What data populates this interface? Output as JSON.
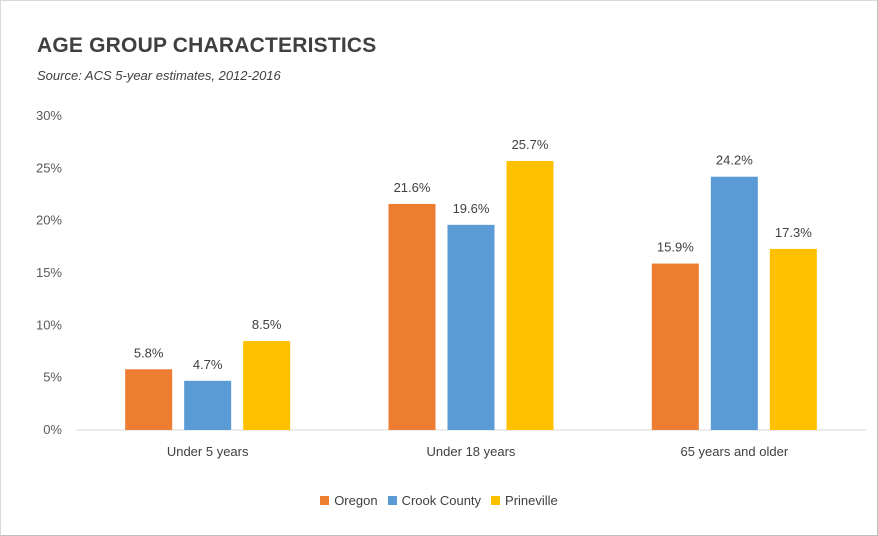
{
  "chart_data": {
    "type": "bar",
    "title": "AGE GROUP CHARACTERISTICS",
    "subtitle": "Source: ACS 5-year estimates, 2012-2016",
    "xlabel": "",
    "ylabel": "",
    "categories": [
      "Under 5 years",
      "Under 18 years",
      "65 years and older"
    ],
    "series": [
      {
        "name": "Oregon",
        "color": "#ED7D31",
        "values": [
          5.8,
          21.6,
          15.9
        ],
        "labels": [
          "5.8%",
          "21.6%",
          "15.9%"
        ]
      },
      {
        "name": "Crook County",
        "color": "#5B9BD5",
        "values": [
          4.7,
          19.6,
          24.2
        ],
        "labels": [
          "4.7%",
          "19.6%",
          "24.2%"
        ]
      },
      {
        "name": "Prineville",
        "color": "#FFC000",
        "values": [
          8.5,
          25.7,
          17.3
        ],
        "labels": [
          "8.5%",
          "25.7%",
          "17.3%"
        ]
      }
    ],
    "ylim": [
      0,
      30
    ],
    "yticks": [
      0,
      5,
      10,
      15,
      20,
      25,
      30
    ],
    "ytick_labels": [
      "0%",
      "5%",
      "10%",
      "15%",
      "20%",
      "25%",
      "30%"
    ],
    "grid": false,
    "legend_position": "bottom"
  }
}
